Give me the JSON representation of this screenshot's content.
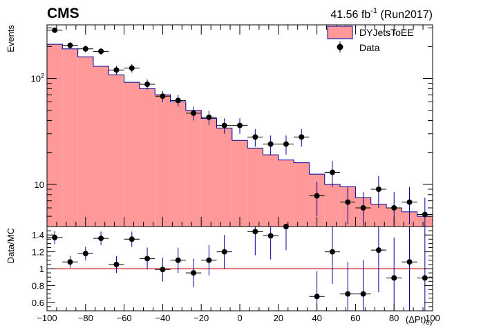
{
  "header": {
    "experiment": "CMS",
    "luminosity": "41.56 fb",
    "lumi_exponent": "-1",
    "run": " (Run2017)"
  },
  "colors": {
    "mc_fill": "#ff9999",
    "mc_line": "#000099",
    "data_marker": "#000000",
    "error_bar": "#000099",
    "ratio_line": "#cc0000"
  },
  "chart_data": [
    {
      "type": "bar",
      "panel": "main",
      "ylabel": "Events",
      "yscale": "log",
      "ylim": [
        4,
        320
      ],
      "xlim": [
        -100,
        100
      ],
      "yticks": [
        {
          "value": 10,
          "label": "10"
        },
        {
          "value": 100,
          "label": "10",
          "exp": "2"
        }
      ],
      "legend": {
        "placement": "top-right",
        "entries": [
          "DYJetsToEE",
          "Data"
        ]
      },
      "bin_edges": [
        -100,
        -92,
        -84,
        -76,
        -68,
        -60,
        -52,
        -44,
        -36,
        -28,
        -20,
        -12,
        -4,
        4,
        12,
        20,
        28,
        36,
        44,
        52,
        60,
        68,
        76,
        84,
        92,
        100
      ],
      "series": [
        {
          "name": "DYJetsToEE",
          "kind": "histogram",
          "values": [
            210,
            190,
            160,
            130,
            108,
            92,
            80,
            70,
            60,
            50,
            42,
            34,
            26,
            22,
            19,
            17,
            16,
            12.5,
            10,
            9.5,
            7.5,
            6.5,
            6,
            5.5,
            5
          ]
        },
        {
          "name": "Data",
          "kind": "points",
          "values": [
            285,
            205,
            190,
            180,
            120,
            125,
            88,
            68,
            62,
            47,
            43,
            36,
            36,
            28,
            24,
            24,
            28,
            7.8,
            13,
            6.8,
            6,
            9,
            6,
            6.8,
            5.2
          ]
        }
      ]
    },
    {
      "type": "scatter",
      "panel": "ratio",
      "ylabel": "Data/MC",
      "xlabel": "(ΔPt)",
      "xlabel_sub": "eγ",
      "xlim": [
        -100,
        100
      ],
      "ylim": [
        0.5,
        1.5
      ],
      "xticks": [
        -100,
        -80,
        -60,
        -40,
        -20,
        0,
        20,
        40,
        60,
        80,
        100
      ],
      "xtick_labels": [
        "−100",
        "−80",
        "−60",
        "−40",
        "−20",
        "0",
        "20",
        "40",
        "60",
        "80",
        "100"
      ],
      "yticks": [
        0.6,
        0.8,
        1,
        1.2,
        1.4
      ],
      "ytick_labels": [
        "0.6",
        "0.8",
        "1",
        "1.2",
        "1.4"
      ],
      "reference_line": 1,
      "x": [
        -96,
        -88,
        -80,
        -72,
        -64,
        -56,
        -48,
        -40,
        -32,
        -24,
        -16,
        -8,
        0,
        8,
        16,
        24,
        32,
        40,
        48,
        56,
        64,
        72,
        80,
        88,
        96
      ],
      "values": [
        1.37,
        1.08,
        1.18,
        1.36,
        1.05,
        1.35,
        1.12,
        0.99,
        1.1,
        0.95,
        1.1,
        1.2,
        null,
        1.44,
        1.39,
        1.52,
        null,
        0.67,
        1.2,
        0.7,
        0.7,
        1.22,
        0.89,
        1.08,
        0.89
      ],
      "errors": [
        0.08,
        0.07,
        0.08,
        0.08,
        0.1,
        0.09,
        0.13,
        0.14,
        0.15,
        0.17,
        0.18,
        0.2,
        null,
        0.28,
        0.28,
        0.3,
        null,
        0.3,
        0.38,
        0.38,
        0.4,
        0.5,
        0.48,
        0.6,
        0.62
      ]
    }
  ]
}
